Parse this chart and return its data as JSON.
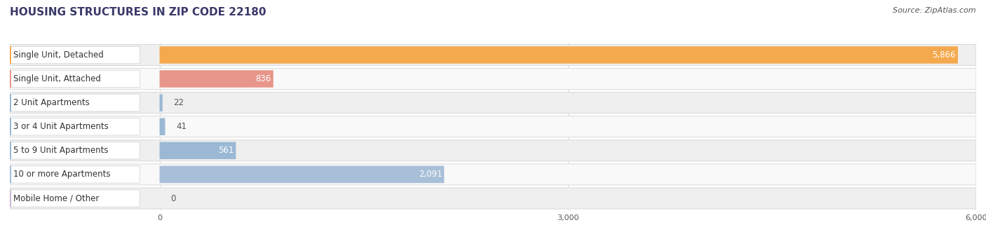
{
  "title": "HOUSING STRUCTURES IN ZIP CODE 22180",
  "source": "Source: ZipAtlas.com",
  "categories": [
    "Single Unit, Detached",
    "Single Unit, Attached",
    "2 Unit Apartments",
    "3 or 4 Unit Apartments",
    "5 to 9 Unit Apartments",
    "10 or more Apartments",
    "Mobile Home / Other"
  ],
  "values": [
    5866,
    836,
    22,
    41,
    561,
    2091,
    0
  ],
  "bar_colors": [
    "#F5A94E",
    "#E8958A",
    "#9BB8D4",
    "#9BB8D4",
    "#9BB8D4",
    "#A8BFD8",
    "#C9B8D4"
  ],
  "xlim": [
    0,
    6000
  ],
  "xticks": [
    0,
    3000,
    6000
  ],
  "xtick_labels": [
    "0",
    "3,000",
    "6,000"
  ],
  "title_fontsize": 11,
  "source_fontsize": 8,
  "bar_label_fontsize": 8.5,
  "value_fontsize": 8.5,
  "background_color": "#FFFFFF",
  "row_bg_colors": [
    "#EFEFEF",
    "#F9F9F9",
    "#EFEFEF",
    "#F9F9F9",
    "#EFEFEF",
    "#F9F9F9",
    "#EFEFEF"
  ],
  "pill_color": "#FFFFFF",
  "grid_color": "#DDDDDD",
  "title_color": "#3A3A6A",
  "source_color": "#555555",
  "label_color": "#333333"
}
